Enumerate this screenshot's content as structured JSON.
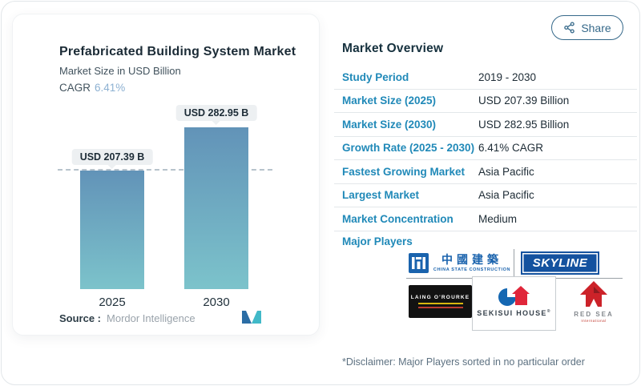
{
  "share": {
    "label": "Share"
  },
  "chart_card": {
    "title": "Prefabricated Building System Market",
    "subtitle": "Market Size in USD Billion",
    "cagr_label": "CAGR",
    "cagr_value": "6.41%",
    "source_label": "Source :",
    "source_value": "Mordor Intelligence"
  },
  "chart_data": {
    "type": "bar",
    "title": "Prefabricated Building System Market",
    "subtitle": "Market Size in USD Billion",
    "unit": "USD Billion",
    "categories": [
      "2025",
      "2030"
    ],
    "values": [
      207.39,
      282.95
    ],
    "bar_labels": [
      "USD 207.39 B",
      "USD 282.95 B"
    ],
    "cagr": "6.41%",
    "baseline": {
      "value": 207.39,
      "style": "dashed"
    },
    "bar_gradient": [
      "#6293b8",
      "#7cc3cb"
    ],
    "legend": "none",
    "grid": "off"
  },
  "overview": {
    "heading": "Market Overview",
    "rows": [
      {
        "label": "Study Period",
        "value": "2019 - 2030"
      },
      {
        "label": "Market Size (2025)",
        "value": "USD 207.39 Billion"
      },
      {
        "label": "Market Size (2030)",
        "value": "USD 282.95 Billion"
      },
      {
        "label": "Growth Rate (2025 - 2030)",
        "value": "6.41% CAGR"
      },
      {
        "label": "Fastest Growing Market",
        "value": "Asia Pacific"
      },
      {
        "label": "Largest Market",
        "value": "Asia Pacific"
      },
      {
        "label": "Market Concentration",
        "value": "Medium"
      }
    ],
    "major_players_label": "Major Players",
    "players_logos": {
      "csc_chars": "中國建築",
      "csc_caption": "CHINA STATE CONSTRUCTION",
      "skyline": "SKYLINE",
      "laing": "LAING O'ROURKE",
      "sekisui": "SEKISUI HOUSE",
      "redsea_title": "RED SEA",
      "redsea_sub": "International"
    },
    "disclaimer": "*Disclaimer: Major Players sorted in no particular order"
  },
  "colors": {
    "label_blue": "#2089b8",
    "value_dark": "#1d2b35",
    "share_blue": "#36698a",
    "cagr_blue": "#8db1d2",
    "bar_top": "#6293b8",
    "bar_bottom": "#7cc3cb",
    "skyline_blue": "#14529f",
    "csc_blue": "#1a63ad",
    "redsea_red": "#cc2229"
  }
}
